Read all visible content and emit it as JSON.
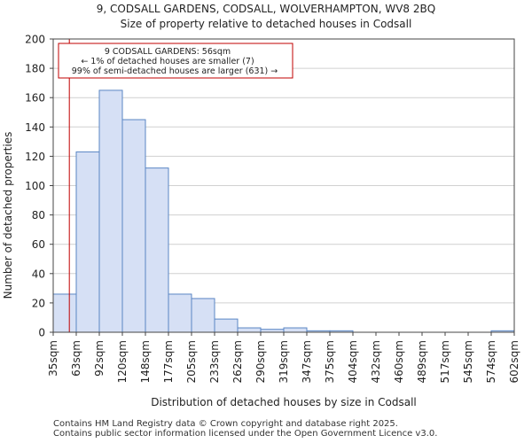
{
  "chart_data": {
    "type": "bar",
    "title": "9, CODSALL GARDENS, CODSALL, WOLVERHAMPTON, WV8 2BQ",
    "subtitle": "Size of property relative to detached houses in Codsall",
    "xlabel": "Distribution of detached houses by size in Codsall",
    "ylabel": "Number of detached properties",
    "ylim": [
      0,
      200
    ],
    "yticks": [
      0,
      20,
      40,
      60,
      80,
      100,
      120,
      140,
      160,
      180,
      200
    ],
    "bin_edges": [
      "35sqm",
      "63sqm",
      "92sqm",
      "120sqm",
      "148sqm",
      "177sqm",
      "205sqm",
      "233sqm",
      "262sqm",
      "290sqm",
      "319sqm",
      "347sqm",
      "375sqm",
      "404sqm",
      "432sqm",
      "460sqm",
      "489sqm",
      "517sqm",
      "545sqm",
      "574sqm",
      "602sqm"
    ],
    "values": [
      26,
      123,
      165,
      145,
      112,
      26,
      23,
      9,
      3,
      2,
      3,
      1,
      1,
      0,
      0,
      0,
      0,
      0,
      0,
      1
    ],
    "marker": {
      "value_bin_position": 0.7,
      "color": "#c00000",
      "label_lines": [
        "9 CODSALL GARDENS: 56sqm",
        "← 1% of detached houses are smaller (7)",
        "99% of semi-detached houses are larger (631) →"
      ]
    },
    "bar_fill": "#d6e0f5",
    "bar_stroke": "#5a86c4"
  },
  "footer": {
    "line1": "Contains HM Land Registry data © Crown copyright and database right 2025.",
    "line2": "Contains public sector information licensed under the Open Government Licence v3.0."
  }
}
